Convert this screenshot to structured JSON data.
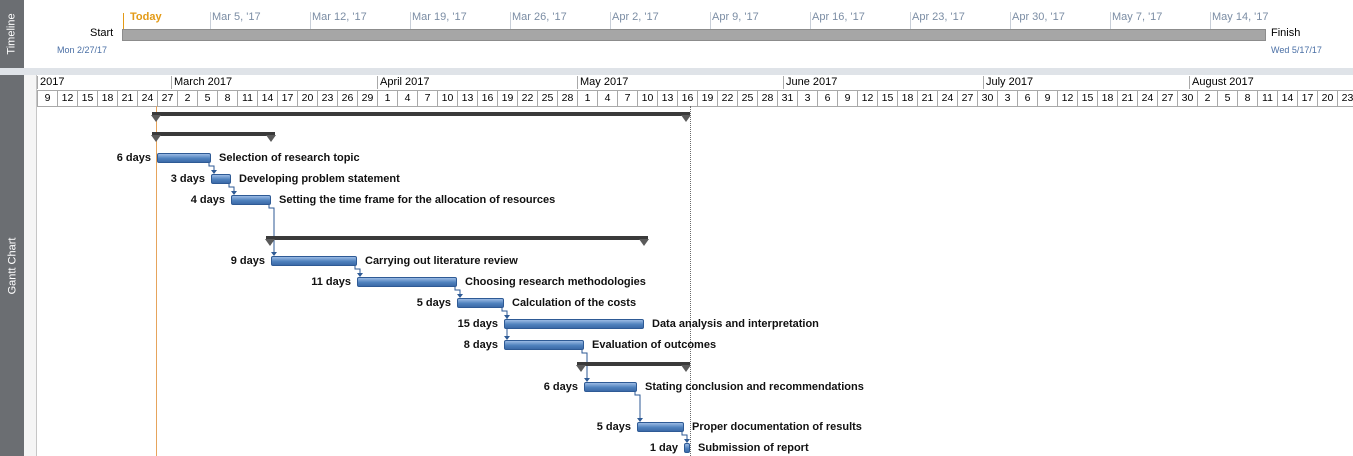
{
  "timeline": {
    "pane_label": "Timeline",
    "today_label": "Today",
    "ticks": [
      "Mar 5, '17",
      "Mar 12, '17",
      "Mar 19, '17",
      "Mar 26, '17",
      "Apr 2, '17",
      "Apr 9, '17",
      "Apr 16, '17",
      "Apr 23, '17",
      "Apr 30, '17",
      "May 7, '17",
      "May 14, '17"
    ],
    "start_label": "Start",
    "start_date": "Mon 2/27/17",
    "finish_label": "Finish",
    "finish_date": "Wed 5/17/17"
  },
  "gantt": {
    "pane_label": "Gantt Chart",
    "months": [
      "2017",
      "March 2017",
      "April 2017",
      "May 2017",
      "June 2017",
      "July 2017",
      "August 2017"
    ],
    "days": [
      "9",
      "12",
      "15",
      "18",
      "21",
      "24",
      "27",
      "2",
      "5",
      "8",
      "11",
      "14",
      "17",
      "20",
      "23",
      "26",
      "29",
      "1",
      "4",
      "7",
      "10",
      "13",
      "16",
      "19",
      "22",
      "25",
      "28",
      "1",
      "4",
      "7",
      "10",
      "13",
      "16",
      "19",
      "22",
      "25",
      "28",
      "31",
      "3",
      "6",
      "9",
      "12",
      "15",
      "18",
      "21",
      "24",
      "27",
      "30",
      "3",
      "6",
      "9",
      "12",
      "15",
      "18",
      "21",
      "24",
      "27",
      "30",
      "2",
      "5",
      "8",
      "11",
      "14",
      "17",
      "20",
      "23"
    ],
    "tasks": [
      {
        "duration": "6 days",
        "name": "Selection of research topic"
      },
      {
        "duration": "3 days",
        "name": "Developing problem statement"
      },
      {
        "duration": "4 days",
        "name": "Setting the time frame for the allocation of resources"
      },
      {
        "duration": "9 days",
        "name": "Carrying out literature review"
      },
      {
        "duration": "11 days",
        "name": "Choosing research methodologies"
      },
      {
        "duration": "5 days",
        "name": "Calculation of the costs"
      },
      {
        "duration": "15 days",
        "name": "Data analysis and interpretation"
      },
      {
        "duration": "8 days",
        "name": "Evaluation of outcomes"
      },
      {
        "duration": "6 days",
        "name": "Stating conclusion and recommendations"
      },
      {
        "duration": "5 days",
        "name": "Proper documentation of results"
      },
      {
        "duration": "1 day",
        "name": "Submission of report"
      }
    ]
  },
  "colors": {
    "today": "#e39a16",
    "task_bar": "#4f81bd",
    "summary_bar": "#3a3a3a",
    "side_panel": "#6b6e72"
  }
}
